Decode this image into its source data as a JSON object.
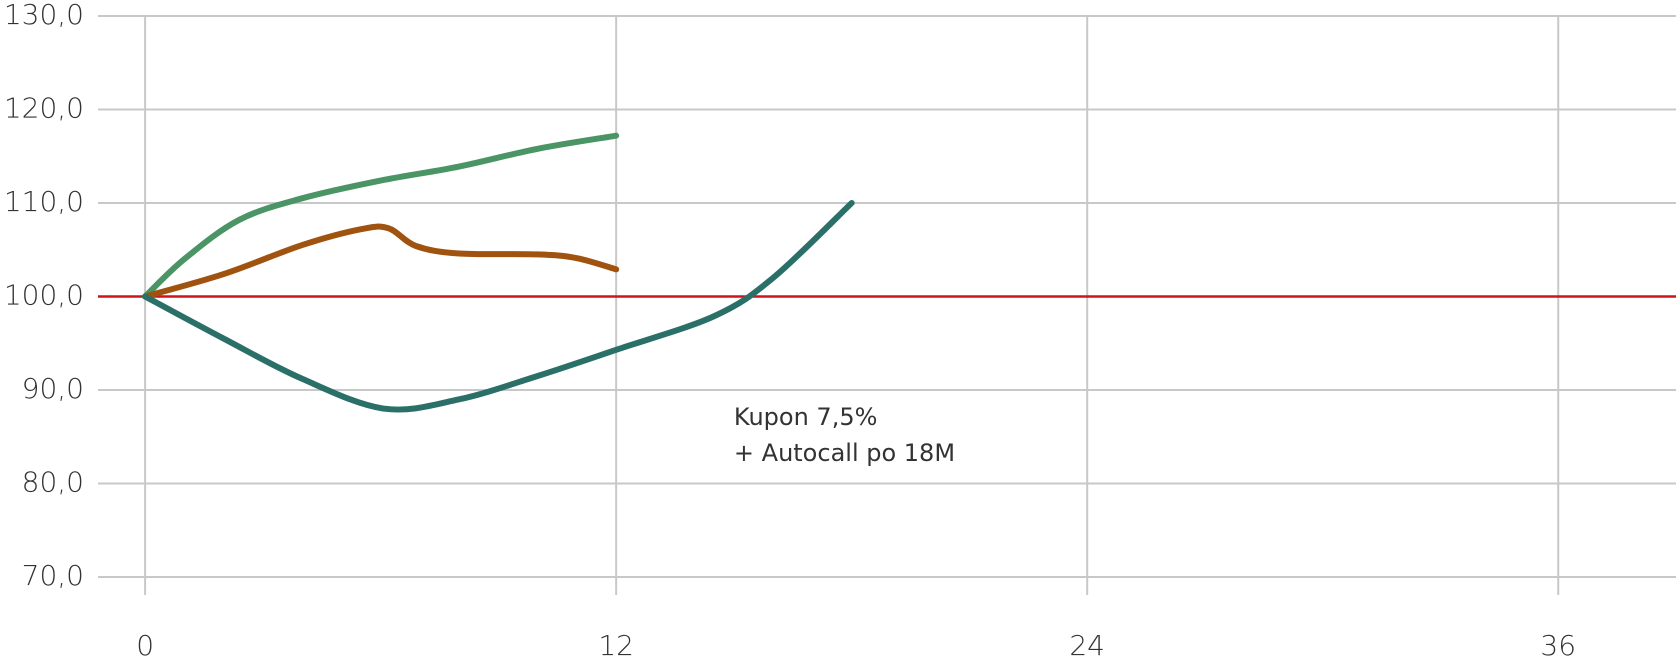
{
  "chart_data": {
    "type": "line",
    "xlim": [
      -1.2,
      39
    ],
    "ylim": [
      70,
      130
    ],
    "xticks": [
      0,
      12,
      24,
      36
    ],
    "yticks": [
      {
        "value": 70,
        "label": "70,0"
      },
      {
        "value": 80,
        "label": "80,0"
      },
      {
        "value": 90,
        "label": "90,0"
      },
      {
        "value": 100,
        "label": "100,0"
      },
      {
        "value": 110,
        "label": "110,0"
      },
      {
        "value": 120,
        "label": "120,0"
      },
      {
        "value": 130,
        "label": "130,0"
      }
    ],
    "grid": true,
    "reference_line": {
      "value": 100,
      "color": "#d0121b"
    },
    "series": [
      {
        "color": "#4a9466",
        "x": [
          0,
          1,
          2.4,
          4,
          6,
          8,
          10,
          12
        ],
        "values": [
          100,
          104,
          108.2,
          110.5,
          112.4,
          113.9,
          115.8,
          117.2
        ]
      },
      {
        "color": "#a0530f",
        "x": [
          0,
          2,
          4,
          5.5,
          6.2,
          6.9,
          8,
          10,
          11,
          12
        ],
        "values": [
          100,
          102.4,
          105.5,
          107.2,
          107.3,
          105.4,
          104.6,
          104.5,
          104.1,
          102.9
        ]
      },
      {
        "color": "#2a7068",
        "x": [
          0,
          2,
          4,
          6.1,
          8,
          10,
          12,
          14.5,
          16,
          18
        ],
        "values": [
          100,
          95.5,
          91.2,
          88,
          89,
          91.5,
          94.3,
          97.9,
          102,
          110
        ]
      }
    ],
    "annotation": {
      "x": 15,
      "y": 87,
      "lines": [
        "Kupon 7,5%",
        "+ Autocall po 18M"
      ]
    }
  }
}
